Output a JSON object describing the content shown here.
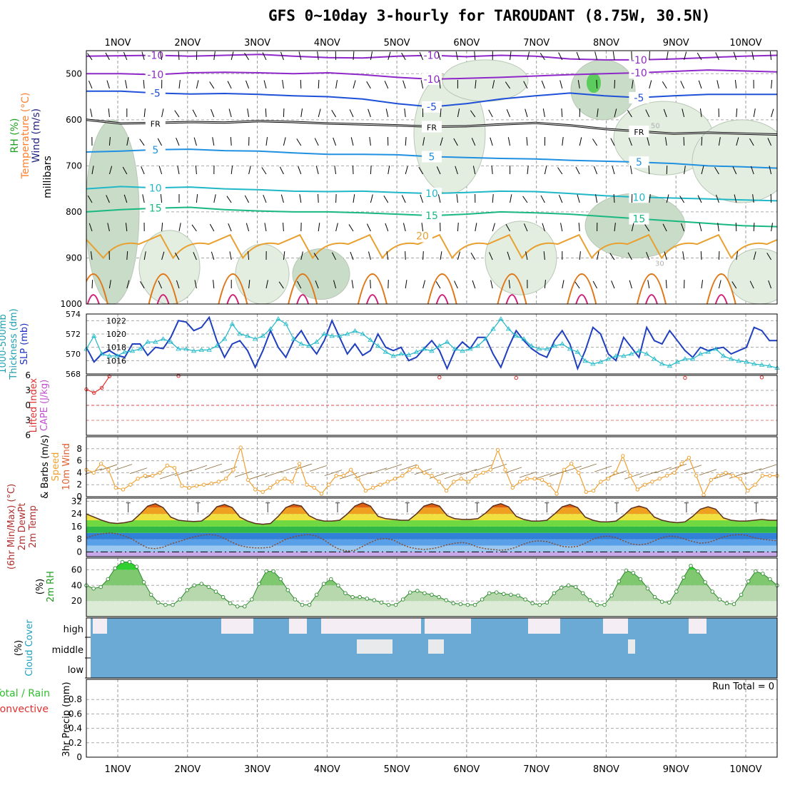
{
  "title": "GFS 0~10day 3-hourly for TAROUDANT (8.75W, 30.5N)",
  "colors": {
    "rh_green": "#2ecc40",
    "temp_orange": "#e8a030",
    "slp_blue": "#1f3fbf",
    "thk_cyan": "#20b8c8",
    "cloud_blue": "#6aaad4",
    "wind_orange": "#f0a030",
    "lifted_red": "#e03030",
    "cape_purple": "#c050d0"
  },
  "chart_data": [
    {
      "type": "contour",
      "name": "upper_air",
      "title": "Upper-air cross section",
      "ylabel": "millibars",
      "ylabel_parts": [
        {
          "text": "RH (%)",
          "color": "#20a020"
        },
        {
          "text": "Temperature (°C)",
          "color": "#ff8030"
        },
        {
          "text": "Wind (m/s)",
          "color": "#202080"
        }
      ],
      "ylim": [
        1000,
        450
      ],
      "yticks": [
        500,
        600,
        700,
        800,
        900,
        1000
      ],
      "isotherms": [
        {
          "label": "-10",
          "color": "#8e28c8",
          "mb": [
            462,
            461,
            460,
            462,
            460,
            458,
            462,
            465,
            466,
            462,
            460,
            463,
            460,
            462,
            468,
            470,
            470,
            468,
            465,
            462,
            460
          ]
        },
        {
          "label": "-10",
          "color": "#8e28c8",
          "mb": [
            500,
            500,
            502,
            498,
            497,
            498,
            500,
            498,
            502,
            508,
            512,
            510,
            508,
            505,
            502,
            500,
            498,
            495,
            492,
            494,
            496
          ]
        },
        {
          "label": "-5",
          "color": "#1f50d8",
          "mb": [
            538,
            538,
            542,
            544,
            543,
            545,
            548,
            550,
            555,
            565,
            572,
            565,
            555,
            548,
            542,
            548,
            552,
            548,
            545,
            545,
            545
          ]
        },
        {
          "label": "FR",
          "color": "#000000",
          "mb": [
            600,
            608,
            607,
            605,
            606,
            603,
            605,
            608,
            610,
            612,
            615,
            614,
            610,
            607,
            612,
            620,
            625,
            630,
            628,
            630,
            632
          ]
        },
        {
          "label": "5",
          "color": "#2090e0",
          "mb": [
            670,
            668,
            665,
            664,
            667,
            668,
            672,
            675,
            675,
            676,
            680,
            682,
            684,
            685,
            688,
            690,
            692,
            695,
            700,
            702,
            705
          ]
        },
        {
          "label": "10",
          "color": "#20b8c8",
          "mb": [
            750,
            745,
            748,
            746,
            750,
            752,
            755,
            756,
            755,
            758,
            760,
            758,
            755,
            756,
            760,
            765,
            768,
            770,
            772,
            774,
            776
          ]
        },
        {
          "label": "15",
          "color": "#18b880",
          "mb": [
            800,
            795,
            792,
            790,
            795,
            798,
            800,
            800,
            802,
            805,
            808,
            805,
            800,
            802,
            805,
            810,
            815,
            820,
            825,
            830,
            832
          ]
        }
      ],
      "isotherm_20_label": "20",
      "rh_contour_labels": [
        "50",
        "30"
      ]
    },
    {
      "type": "line",
      "name": "slp_thickness",
      "ylabel_parts": [
        {
          "text": "SLP (mb)",
          "color": "#2030c0"
        },
        {
          "text": "Thickness (dm)",
          "color": "#20a0b0"
        },
        {
          "text": "1000-500mb",
          "color": "#20a0b0"
        }
      ],
      "left_axis": {
        "label": "Thickness (dm)",
        "ylim": [
          568,
          574
        ],
        "ticks": [
          568,
          570,
          572,
          574
        ]
      },
      "right_axis": {
        "label": "SLP (mb)",
        "ylim": [
          1014,
          1023
        ],
        "ticks": [
          1016,
          1018,
          1020,
          1022
        ]
      },
      "series": [
        {
          "name": "SLP",
          "axis": "right",
          "color": "#1f3fbf",
          "values": [
            1018.0,
            1015.8,
            1017.0,
            1017.5,
            1016.8,
            1016.5,
            1018.5,
            1018.5,
            1016.8,
            1018.0,
            1017.8,
            1019.5,
            1022.0,
            1021.8,
            1020.5,
            1021.0,
            1022.5,
            1019.0,
            1016.5,
            1018.5,
            1019.0,
            1017.5,
            1015.0,
            1017.5,
            1020.5,
            1018.0,
            1016.5,
            1019.0,
            1020.5,
            1018.5,
            1017.0,
            1019.0,
            1022.0,
            1019.5,
            1017.0,
            1018.5,
            1016.8,
            1017.5,
            1020.0,
            1018.0,
            1017.5,
            1018.0,
            1016.0,
            1016.5,
            1017.8,
            1019.0,
            1017.5,
            1014.8,
            1017.5,
            1018.8,
            1017.8,
            1019.5,
            1019.5,
            1017.0,
            1015.0,
            1018.0,
            1020.5,
            1019.0,
            1017.8,
            1017.0,
            1016.5,
            1019.0,
            1020.5,
            1018.5,
            1014.8,
            1017.5,
            1021.0,
            1020.0,
            1017.0,
            1016.0,
            1019.5,
            1018.0,
            1016.5,
            1021.0,
            1019.0,
            1018.5,
            1020.5,
            1019.0,
            1017.5,
            1016.5,
            1018.0,
            1017.5,
            1017.8,
            1018.0,
            1017.0,
            1017.5,
            1018.0,
            1021.0,
            1020.5,
            1019.0,
            1019.0
          ]
        },
        {
          "name": "Thickness",
          "axis": "left",
          "color": "#20b8c8",
          "values": [
            570.5,
            571.8,
            570.0,
            569.8,
            569.8,
            570.2,
            570.3,
            570.5,
            571.2,
            571.2,
            571.5,
            571.2,
            570.5,
            570.5,
            570.3,
            570.4,
            570.4,
            570.8,
            571.5,
            573.0,
            572.0,
            571.8,
            571.5,
            571.8,
            572.5,
            573.5,
            573.0,
            571.5,
            571.0,
            570.8,
            571.2,
            572.0,
            571.8,
            571.8,
            572.0,
            572.3,
            572.0,
            571.4,
            570.8,
            570.2,
            569.8,
            570.0,
            569.9,
            570.2,
            570.5,
            570.3,
            570.8,
            571.2,
            570.5,
            570.3,
            570.5,
            570.8,
            571.5,
            572.5,
            573.5,
            572.5,
            571.8,
            571.5,
            570.8,
            570.5,
            570.5,
            570.8,
            571.0,
            570.5,
            570.2,
            569.3,
            569.0,
            569.2,
            569.5,
            569.8,
            569.8,
            570.0,
            570.3,
            570.0,
            569.5,
            569.0,
            568.8,
            569.2,
            569.5,
            569.5,
            570.0,
            570.2,
            570.5,
            569.8,
            569.5,
            569.3,
            569.2,
            569.0,
            568.9,
            568.8,
            568.6
          ]
        }
      ]
    },
    {
      "type": "line",
      "name": "stability",
      "ylabel_parts": [
        {
          "text": "Lifted Index",
          "color": "#e03030"
        },
        {
          "text": "CAPE (J/kg)",
          "color": "#c050d0"
        }
      ],
      "ylim": [
        -6,
        6
      ],
      "yticks": [
        -6,
        -3,
        0,
        3,
        6
      ],
      "ytick_labels": [
        "6",
        "3",
        "0",
        "3",
        "6"
      ],
      "series": [
        {
          "name": "Lifted Index",
          "color": "#e03030",
          "points": [
            [
              0,
              -3.2
            ],
            [
              1,
              -2.5
            ],
            [
              2,
              -3.5
            ],
            [
              3,
              -5.8
            ],
            [
              12,
              -5.9
            ],
            [
              46,
              -5.6
            ],
            [
              56,
              -5.5
            ],
            [
              78,
              -5.5
            ],
            [
              88,
              -5.6
            ],
            [
              98,
              -5.6
            ]
          ]
        }
      ]
    },
    {
      "type": "line",
      "name": "wind10m",
      "ylabel_parts": [
        {
          "text": "10m Wind",
          "color": "#e06030"
        },
        {
          "text": "Speed",
          "color": "#f0a030"
        },
        {
          "text": "& Barbs (m/s)",
          "color": "#000000"
        }
      ],
      "ylim": [
        0,
        10
      ],
      "yticks": [
        0,
        2,
        4,
        6,
        8
      ],
      "series": [
        {
          "name": "Speed",
          "color": "#f0a030",
          "values": [
            4.5,
            4.0,
            5.5,
            4.5,
            1.5,
            1.2,
            2.0,
            3.0,
            3.5,
            3.5,
            4.0,
            5.2,
            4.8,
            1.8,
            1.5,
            1.8,
            2.0,
            2.2,
            2.5,
            3.0,
            4.5,
            8.2,
            2.8,
            1.2,
            0.8,
            1.5,
            2.5,
            3.0,
            2.5,
            5.5,
            2.0,
            1.5,
            0.5,
            2.0,
            3.5,
            3.5,
            4.5,
            3.0,
            1.0,
            1.5,
            2.0,
            2.5,
            3.0,
            3.5,
            4.5,
            5.0,
            4.0,
            3.5,
            2.5,
            1.0,
            2.5,
            3.0,
            2.5,
            3.5,
            4.0,
            4.5,
            7.8,
            4.5,
            1.5,
            2.5,
            3.0,
            3.0,
            2.8,
            2.0,
            0.5,
            4.5,
            5.5,
            4.0,
            0.8,
            1.0,
            2.5,
            3.0,
            4.0,
            6.8,
            3.5,
            1.2,
            2.0,
            2.5,
            3.0,
            3.5,
            4.0,
            5.5,
            6.5,
            3.5,
            0.3,
            2.8,
            3.5,
            4.0,
            3.5,
            3.0,
            1.0,
            2.0,
            3.5,
            3.5,
            3.5
          ]
        }
      ]
    },
    {
      "type": "area",
      "name": "temperature2m",
      "ylabel_parts": [
        {
          "text": "2m Temp",
          "color": "#b03030"
        },
        {
          "text": "2m DewPt",
          "color": "#b03030"
        },
        {
          "text": "(6hr Min/Max) (°C)",
          "color": "#b03030"
        }
      ],
      "ylim": [
        -3,
        34
      ],
      "yticks": [
        0,
        8,
        16,
        24,
        32
      ],
      "series": [
        {
          "name": "2m Temp",
          "color": "#5a3020",
          "values": [
            24.0,
            22.0,
            20.0,
            18.5,
            18.0,
            18.5,
            19.5,
            24.0,
            29.0,
            30.5,
            28.0,
            22.0,
            20.0,
            19.5,
            19.2,
            19.5,
            23.0,
            28.5,
            30.0,
            28.0,
            22.0,
            19.5,
            18.0,
            17.5,
            18.0,
            22.5,
            28.0,
            30.0,
            29.0,
            23.0,
            20.5,
            19.5,
            19.5,
            20.0,
            24.0,
            29.0,
            31.0,
            29.0,
            22.5,
            21.0,
            20.5,
            20.0,
            20.0,
            24.0,
            29.0,
            30.5,
            29.0,
            23.0,
            21.0,
            20.5,
            20.5,
            21.0,
            24.5,
            29.0,
            30.5,
            28.5,
            22.5,
            20.5,
            19.5,
            19.5,
            20.0,
            24.0,
            28.5,
            30.0,
            28.0,
            22.0,
            20.0,
            19.0,
            19.0,
            19.5,
            23.0,
            27.5,
            29.0,
            27.5,
            22.0,
            20.0,
            19.0,
            18.5,
            19.0,
            22.5,
            27.0,
            28.5,
            27.0,
            21.5,
            20.0,
            19.5,
            19.5,
            20.0,
            20.5,
            20.0,
            20.0
          ]
        },
        {
          "name": "2m DewPt",
          "color": "#8a4a2a",
          "values": [
            9.0,
            10.5,
            11.5,
            12.0,
            11.5,
            10.0,
            8.0,
            5.0,
            2.5,
            2.0,
            3.0,
            5.0,
            6.5,
            8.0,
            9.5,
            10.5,
            11.0,
            10.5,
            8.5,
            6.0,
            4.0,
            3.0,
            2.5,
            2.5,
            3.0,
            5.5,
            8.0,
            9.5,
            10.5,
            11.0,
            10.0,
            7.5,
            4.0,
            1.5,
            0.5,
            1.0,
            3.5,
            6.0,
            8.0,
            8.5,
            7.5,
            5.0,
            3.0,
            2.0,
            1.5,
            2.0,
            3.0,
            4.5,
            5.5,
            6.0,
            5.0,
            3.0,
            2.0,
            1.5,
            1.0,
            1.5,
            3.0,
            5.0,
            6.5,
            7.0,
            6.5,
            5.0,
            3.5,
            3.0,
            3.5,
            5.5,
            8.0,
            9.5,
            10.0,
            9.0,
            7.0,
            5.0,
            4.5,
            5.0,
            7.0,
            9.0,
            10.0,
            9.5,
            8.0,
            6.5,
            5.5,
            6.0,
            7.5,
            9.5,
            10.5,
            11.0,
            10.5,
            9.0,
            8.0,
            7.5,
            7.0
          ]
        }
      ]
    },
    {
      "type": "area",
      "name": "rh2m",
      "ylabel_parts": [
        {
          "text": "2m RH",
          "color": "#20a020"
        },
        {
          "text": "(%)",
          "color": "#000000"
        }
      ],
      "ylim": [
        0,
        75
      ],
      "yticks": [
        20,
        40,
        60
      ],
      "series": [
        {
          "name": "2m RH",
          "color": "#20a020",
          "values": [
            40,
            36,
            38,
            48,
            62,
            70,
            70,
            64,
            44,
            28,
            18,
            15,
            15,
            22,
            34,
            40,
            42,
            38,
            32,
            25,
            17,
            13,
            13,
            22,
            42,
            58,
            58,
            48,
            34,
            22,
            15,
            15,
            28,
            42,
            48,
            40,
            30,
            25,
            25,
            23,
            21,
            18,
            15,
            15,
            22,
            31,
            33,
            30,
            28,
            25,
            21,
            17,
            16,
            15,
            15,
            22,
            30,
            31,
            29,
            28,
            27,
            22,
            17,
            15,
            18,
            30,
            37,
            40,
            38,
            30,
            21,
            15,
            15,
            27,
            45,
            59,
            56,
            48,
            36,
            25,
            19,
            18,
            32,
            50,
            65,
            58,
            44,
            32,
            22,
            17,
            16,
            28,
            45,
            58,
            55,
            48,
            40
          ]
        }
      ]
    },
    {
      "type": "heatmap",
      "name": "cloud_cover",
      "ylabel_parts": [
        {
          "text": "Cloud Cover",
          "color": "#20a0c0"
        },
        {
          "text": "(%)",
          "color": "#000000"
        }
      ],
      "rows": [
        "high",
        "middle",
        "low"
      ],
      "row_labels": [
        "high",
        "middle",
        "low"
      ]
    },
    {
      "type": "bar",
      "name": "precip3hr",
      "ylabel_parts": [
        {
          "text": "Total / Rain",
          "color": "#30c030"
        },
        {
          "text": "Convective",
          "color": "#e03030"
        },
        {
          "text": "3hr Precip (mm)",
          "color": "#000000"
        }
      ],
      "ylim": [
        0,
        1
      ],
      "yticks": [
        0,
        0.2,
        0.4,
        0.6,
        0.8
      ],
      "values": [],
      "run_total_label": "Run Total = 0"
    }
  ],
  "x_axis": {
    "dates": [
      "1NOV",
      "2NOV",
      "3NOV",
      "4NOV",
      "5NOV",
      "6NOV",
      "7NOV",
      "8NOV",
      "9NOV",
      "10NOV"
    ],
    "range_days": [
      0.55,
      10.45
    ]
  }
}
